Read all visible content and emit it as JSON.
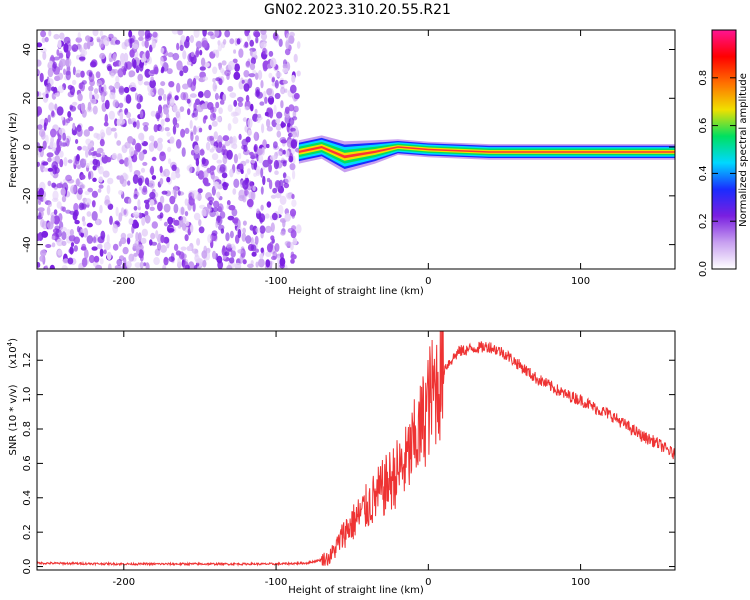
{
  "title": "GN02.2023.310.20.55.R21",
  "colors": {
    "snr_line": "#ee3333",
    "noise": "#7a1fe0",
    "axis": "#000000"
  },
  "chart_data": [
    {
      "type": "heatmap",
      "xlabel": "Height of straight line (km)",
      "ylabel": "Frequency (Hz)",
      "xlim": [
        -257,
        162
      ],
      "ylim": [
        -50,
        48
      ],
      "xticks": [
        -200,
        -100,
        0,
        100
      ],
      "xtick_labels": [
        "-200",
        "-100",
        "0",
        "100"
      ],
      "yticks": [
        -40,
        -20,
        0,
        20,
        40
      ],
      "ytick_labels": [
        "-40",
        "-20",
        "0",
        "20",
        "40"
      ],
      "colorbar": {
        "label": "Normalized spectral amplitude",
        "range": [
          0.0,
          1.0
        ],
        "ticks": [
          0.0,
          0.2,
          0.4,
          0.6,
          0.8
        ],
        "tick_labels": [
          "0.0",
          "0.2",
          "0.4",
          "0.6",
          "0.8"
        ],
        "colormap": [
          "#ffffff",
          "#c8a0f0",
          "#7a1fe0",
          "#1a2cff",
          "#00d8ff",
          "#00e060",
          "#f0e000",
          "#ff7000",
          "#ff0000",
          "#ff1493"
        ]
      },
      "noise_region": {
        "x": [
          -257,
          -85
        ],
        "y": [
          -50,
          48
        ]
      },
      "signal_band": [
        {
          "x": -85,
          "freq": -2,
          "width": 6
        },
        {
          "x": -70,
          "freq": 0,
          "width": 6
        },
        {
          "x": -55,
          "freq": -4,
          "width": 8
        },
        {
          "x": -35,
          "freq": -2,
          "width": 6
        },
        {
          "x": -20,
          "freq": 0,
          "width": 4
        },
        {
          "x": 0,
          "freq": -1,
          "width": 4
        },
        {
          "x": 40,
          "freq": -2,
          "width": 4
        },
        {
          "x": 80,
          "freq": -2,
          "width": 4
        },
        {
          "x": 120,
          "freq": -2,
          "width": 4
        },
        {
          "x": 162,
          "freq": -2,
          "width": 4
        }
      ]
    },
    {
      "type": "line",
      "xlabel": "Height of straight line (km)",
      "ylabel": "SNR (10 * v/v)",
      "y_multiplier_label": "(x10",
      "y_multiplier_exp": "4",
      "y_multiplier_close": ")",
      "xlim": [
        -257,
        162
      ],
      "ylim": [
        -0.02,
        1.37
      ],
      "xticks": [
        -200,
        -100,
        0,
        100
      ],
      "xtick_labels": [
        "-200",
        "-100",
        "0",
        "100"
      ],
      "yticks": [
        0.0,
        0.2,
        0.4,
        0.6,
        0.8,
        1.0,
        1.2
      ],
      "ytick_labels": [
        "0.0",
        "0.2",
        "0.4",
        "0.6",
        "0.8",
        "1.0",
        "1.2"
      ],
      "series": [
        {
          "x": [
            -257,
            -200,
            -150,
            -100,
            -80,
            -65,
            -60,
            -55,
            -50,
            -45,
            -40,
            -35,
            -30,
            -25,
            -20,
            -15,
            -10,
            -5,
            0,
            5,
            10,
            15,
            20,
            30,
            40,
            50,
            60,
            70,
            80,
            90,
            100,
            110,
            120,
            130,
            140,
            150,
            162
          ],
          "y": [
            0.02,
            0.015,
            0.015,
            0.015,
            0.02,
            0.05,
            0.12,
            0.2,
            0.25,
            0.3,
            0.35,
            0.4,
            0.45,
            0.5,
            0.55,
            0.6,
            0.7,
            0.8,
            0.95,
            1.05,
            1.15,
            1.2,
            1.25,
            1.27,
            1.28,
            1.24,
            1.17,
            1.1,
            1.05,
            1.0,
            0.97,
            0.92,
            0.88,
            0.82,
            0.76,
            0.72,
            0.65
          ]
        }
      ]
    }
  ]
}
